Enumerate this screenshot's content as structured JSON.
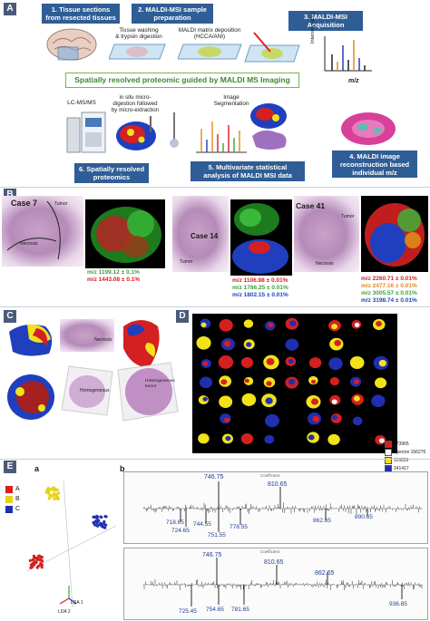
{
  "panels": {
    "a": "A",
    "b": "B",
    "c": "C",
    "d": "D",
    "e": "E"
  },
  "panelA": {
    "step1": "1. Tissue sections\nfrom resected tissues",
    "step2": "2. MALDI-MSI sample\npreparation",
    "step3": "3. MALDI-MSI\nAcquisition",
    "step4": "4. MALDI image\nreconstruction based\nindividual m/z distribution",
    "step5": "5. Multivariate statistical\nanalysis of MALDI MSI data",
    "step6": "6. Spatially resolved\nproteomics",
    "washing": "Tissue washing\n& trypsin digestion",
    "matrix": "MALDI matrix deposition\n(HCCA/ANI)",
    "banner": "Spatially resolved proteomic guided by MALDI MS Imaging",
    "lcms": "LC-MS/MS",
    "insitu": "in situ micro-\ndigestion followed\nby micro-extraction",
    "segmentation": "Image\nSegmentation",
    "intensity": "Intensity (a.u.)",
    "mz": "m/z"
  },
  "panelB": {
    "case7": "Case 7",
    "case14": "Case 14",
    "case41": "Case 41",
    "tumor": "Tumor",
    "necrosis": "Necrosis",
    "mz7": [
      "m/z 1199.12 ± 0.1%",
      "m/z 1443.08 ± 0.1%"
    ],
    "mz14": [
      "m/z 1106.98 ± 0.01%",
      "m/z 1786.25 ± 0.01%",
      "m/z 1802.15 ± 0.01%"
    ],
    "mz41": [
      "m/z 2260.71 ± 0.01%",
      "m/z 2477.16 ± 0.01%",
      "m/z 3005.57 ± 0.01%",
      "m/z 3198.74 ± 0.01%"
    ],
    "colors7": [
      "#3aa33a",
      "#d42020"
    ],
    "colors14": [
      "#d42020",
      "#3aa33a",
      "#1f3fbf"
    ],
    "colors41": [
      "#d42020",
      "#e08a1a",
      "#3aa33a",
      "#1f3fbf"
    ]
  },
  "panelC": {
    "necrosis": "Necrosis",
    "homogeneous": "Homogeneous",
    "heterogeneous": "Heterogeneous\ntumor"
  },
  "panelD": {
    "legend": [
      "173965",
      "Spectre 156276",
      "116839",
      "241417"
    ],
    "legend_colors": [
      "#d42020",
      "#ffffff",
      "#f2e21a",
      "#1f2fb0"
    ]
  },
  "panelE": {
    "sub_a": "a",
    "sub_b": "b",
    "groups": [
      "A",
      "B",
      "C"
    ],
    "group_colors": [
      "#d42020",
      "#e6d21a",
      "#1f2fb0"
    ],
    "lda1": "LDA 1",
    "lda2": "LDA 2",
    "spectrum1_title": "Coefficient",
    "spectrum2_title": "Coefficient",
    "peaks1": [
      "746.75",
      "810.65",
      "718.65",
      "724.65",
      "744.55",
      "751.55",
      "778.55",
      "862.65",
      "890.65"
    ],
    "peaks2": [
      "746.75",
      "810.65",
      "862.65",
      "725.45",
      "754.65",
      "781.65",
      "936.85"
    ]
  }
}
